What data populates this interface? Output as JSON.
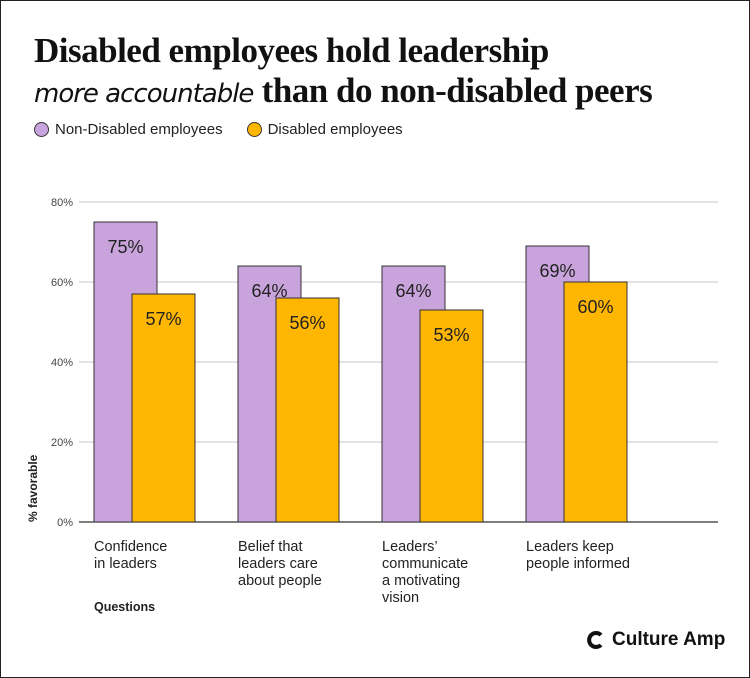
{
  "title": {
    "line1": "Disabled employees hold leadership",
    "hand": "more accountable",
    "line2_rest": " than do non-disabled peers"
  },
  "brand": {
    "name": "Culture Amp"
  },
  "chart_data": {
    "type": "bar",
    "categories": [
      [
        "Confidence",
        "in leaders"
      ],
      [
        "Belief that",
        "leaders care",
        "about people"
      ],
      [
        "Leaders’",
        "communicate",
        "a motivating",
        "vision"
      ],
      [
        "Leaders keep",
        "people informed"
      ]
    ],
    "series": [
      {
        "name": "Non-Disabled employees",
        "color": "#c9a3dc",
        "values": [
          75,
          64,
          64,
          69
        ]
      },
      {
        "name": "Disabled employees",
        "color": "#ffb600",
        "values": [
          57,
          56,
          53,
          60
        ]
      }
    ],
    "xlabel": "Questions",
    "ylabel": "% favorable",
    "ylim": [
      0,
      80
    ],
    "yticks": [
      "0%",
      "20%",
      "40%",
      "60%",
      "80%"
    ],
    "grid": true,
    "legend": "top-left"
  }
}
